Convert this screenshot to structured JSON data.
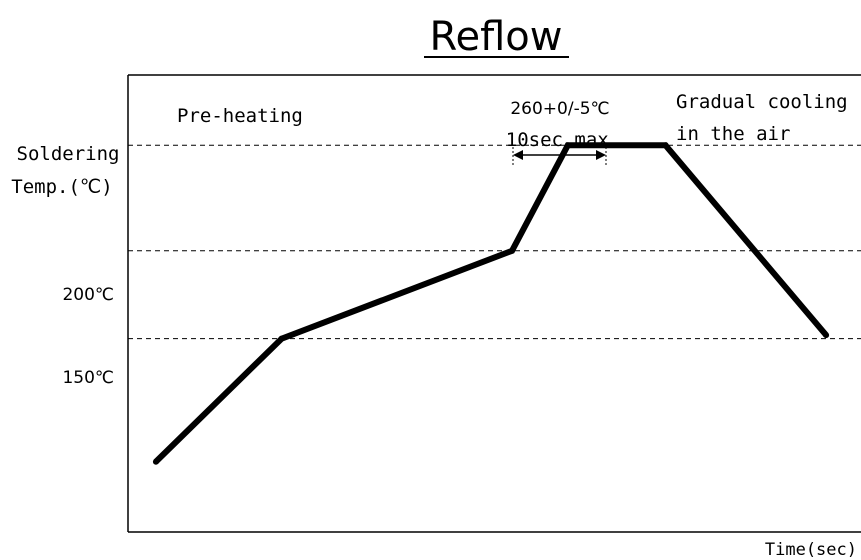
{
  "chart_data": {
    "type": "line",
    "title": "Reflow",
    "xlabel": "Time(sec)",
    "ylabel": "",
    "y_reference_lines": [
      {
        "label_lines": [
          "Soldering",
          "Temp.(℃)"
        ],
        "value": 260
      },
      {
        "label_lines": [
          "200℃"
        ],
        "value": 200
      },
      {
        "label_lines": [
          "150℃"
        ],
        "value": 150
      }
    ],
    "annotations": [
      {
        "text": "Pre-heating"
      },
      {
        "text": "260+0/-5℃"
      },
      {
        "text": "10sec.max."
      },
      {
        "text": "Gradual cooling"
      },
      {
        "text": "in the air"
      }
    ],
    "series": [
      {
        "x": [
          0.04,
          0.22,
          0.55,
          0.63,
          0.77,
          1.0
        ],
        "y": [
          80,
          150,
          200,
          260,
          260,
          152
        ]
      }
    ],
    "xlim": [
      0,
      1.05
    ],
    "ylim": [
      40,
      300
    ],
    "grid": false
  }
}
